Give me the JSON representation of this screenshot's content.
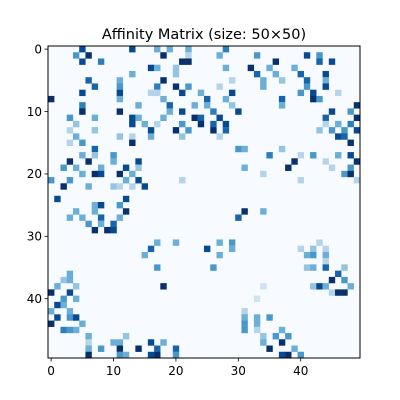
{
  "chart_data": {
    "type": "heatmap",
    "title": "Affinity Matrix (size: 50×50)",
    "size": 50,
    "colormap": "Blues",
    "background_color": "#f7fbff",
    "xlabel": "",
    "ylabel": "",
    "xlim": [
      -0.5,
      49.5
    ],
    "ylim": [
      49.5,
      -0.5
    ],
    "x_ticks": [
      0,
      10,
      20,
      30,
      40
    ],
    "y_ticks": [
      0,
      10,
      20,
      30,
      40
    ],
    "x_tick_labels": [
      "0",
      "10",
      "20",
      "30",
      "40"
    ],
    "y_tick_labels": [
      "0",
      "10",
      "20",
      "30",
      "40"
    ],
    "grid": false,
    "legend": "none",
    "value_range": [
      0,
      1
    ],
    "cells": [
      [
        0,
        5,
        0.9
      ],
      [
        0,
        13,
        0.9
      ],
      [
        0,
        17,
        0.5
      ],
      [
        0,
        19,
        0.5
      ],
      [
        0,
        22,
        0.5
      ],
      [
        0,
        28,
        0.7
      ],
      [
        1,
        4,
        0.6
      ],
      [
        1,
        6,
        1.0
      ],
      [
        1,
        18,
        1.0
      ],
      [
        1,
        22,
        0.3
      ],
      [
        1,
        27,
        0.5
      ],
      [
        1,
        33,
        0.6
      ],
      [
        1,
        41,
        0.9
      ],
      [
        1,
        43,
        0.6
      ],
      [
        2,
        5,
        0.9
      ],
      [
        2,
        8,
        0.7
      ],
      [
        2,
        21,
        1.0
      ],
      [
        2,
        22,
        1.0
      ],
      [
        2,
        36,
        1.0
      ],
      [
        2,
        43,
        0.8
      ],
      [
        2,
        45,
        0.9
      ],
      [
        3,
        16,
        0.9
      ],
      [
        3,
        17,
        0.5
      ],
      [
        3,
        20,
        0.4
      ],
      [
        3,
        28,
        0.5
      ],
      [
        3,
        32,
        1.0
      ],
      [
        3,
        35,
        0.5
      ],
      [
        3,
        39,
        0.5
      ],
      [
        4,
        13,
        0.5
      ],
      [
        4,
        20,
        0.4
      ],
      [
        4,
        33,
        0.8
      ],
      [
        4,
        36,
        0.5
      ],
      [
        4,
        40,
        0.8
      ],
      [
        4,
        44,
        0.9
      ],
      [
        5,
        6,
        0.8
      ],
      [
        5,
        11,
        0.5
      ],
      [
        5,
        18,
        1.0
      ],
      [
        5,
        29,
        0.3
      ],
      [
        5,
        34,
        0.5
      ],
      [
        5,
        37,
        0.4
      ],
      [
        5,
        41,
        0.8
      ],
      [
        5,
        44,
        0.5
      ],
      [
        6,
        7,
        0.8
      ],
      [
        6,
        11,
        0.6
      ],
      [
        6,
        17,
        0.7
      ],
      [
        6,
        20,
        1.0
      ],
      [
        6,
        22,
        0.6
      ],
      [
        6,
        27,
        0.3
      ],
      [
        6,
        34,
        0.5
      ],
      [
        6,
        41,
        0.6
      ],
      [
        6,
        44,
        0.9
      ],
      [
        7,
        5,
        0.9
      ],
      [
        7,
        11,
        0.9
      ],
      [
        7,
        16,
        0.3
      ],
      [
        7,
        17,
        0.3
      ],
      [
        7,
        21,
        0.9
      ],
      [
        7,
        24,
        0.5
      ],
      [
        7,
        29,
        0.9
      ],
      [
        7,
        40,
        0.6
      ],
      [
        7,
        42,
        0.9
      ],
      [
        7,
        46,
        0.3
      ],
      [
        8,
        0,
        1.0
      ],
      [
        8,
        11,
        0.5
      ],
      [
        8,
        18,
        0.5
      ],
      [
        8,
        25,
        0.8
      ],
      [
        8,
        28,
        0.5
      ],
      [
        8,
        37,
        0.8
      ],
      [
        8,
        42,
        1.0
      ],
      [
        8,
        43,
        0.6
      ],
      [
        9,
        5,
        0.7
      ],
      [
        9,
        14,
        0.5
      ],
      [
        9,
        19,
        0.8
      ],
      [
        9,
        23,
        0.5
      ],
      [
        9,
        25,
        0.5
      ],
      [
        9,
        29,
        0.4
      ],
      [
        9,
        37,
        0.5
      ],
      [
        9,
        49,
        1.0
      ],
      [
        10,
        5,
        1.0
      ],
      [
        10,
        11,
        1.0
      ],
      [
        10,
        19,
        0.5
      ],
      [
        10,
        21,
        0.9
      ],
      [
        10,
        26,
        0.7
      ],
      [
        10,
        30,
        0.9
      ],
      [
        10,
        45,
        0.9
      ],
      [
        10,
        48,
        0.6
      ],
      [
        11,
        3,
        0.6
      ],
      [
        11,
        7,
        0.5
      ],
      [
        11,
        13,
        0.9
      ],
      [
        11,
        14,
        0.5
      ],
      [
        11,
        18,
        0.5
      ],
      [
        11,
        23,
        1.0
      ],
      [
        11,
        24,
        0.8
      ],
      [
        11,
        27,
        0.9
      ],
      [
        11,
        44,
        0.8
      ],
      [
        11,
        49,
        1.0
      ],
      [
        12,
        4,
        0.4
      ],
      [
        12,
        13,
        0.9
      ],
      [
        12,
        15,
        0.5
      ],
      [
        12,
        17,
        0.3
      ],
      [
        12,
        21,
        0.6
      ],
      [
        12,
        24,
        1.0
      ],
      [
        12,
        26,
        0.8
      ],
      [
        12,
        28,
        0.9
      ],
      [
        12,
        44,
        0.3
      ],
      [
        12,
        46,
        0.5
      ],
      [
        12,
        48,
        0.7
      ],
      [
        13,
        3,
        0.3
      ],
      [
        13,
        7,
        0.4
      ],
      [
        13,
        16,
        0.9
      ],
      [
        13,
        20,
        1.0
      ],
      [
        13,
        22,
        0.6
      ],
      [
        13,
        26,
        1.0
      ],
      [
        13,
        28,
        0.8
      ],
      [
        13,
        43,
        0.4
      ],
      [
        13,
        45,
        0.6
      ],
      [
        13,
        47,
        0.6
      ],
      [
        13,
        49,
        0.9
      ],
      [
        14,
        4,
        0.5
      ],
      [
        14,
        11,
        0.4
      ],
      [
        14,
        13,
        0.3
      ],
      [
        14,
        16,
        0.5
      ],
      [
        14,
        21,
        0.4
      ],
      [
        14,
        27,
        0.3
      ],
      [
        14,
        46,
        0.9
      ],
      [
        14,
        47,
        0.8
      ],
      [
        15,
        3,
        0.3
      ],
      [
        15,
        5,
        0.6
      ],
      [
        15,
        13,
        1.0
      ],
      [
        15,
        48,
        1.0
      ],
      [
        16,
        7,
        0.8
      ],
      [
        16,
        30,
        0.6
      ],
      [
        16,
        31,
        0.5
      ],
      [
        16,
        37,
        0.4
      ],
      [
        17,
        5,
        0.5
      ],
      [
        17,
        7,
        0.4
      ],
      [
        17,
        10,
        0.6
      ],
      [
        17,
        35,
        0.7
      ],
      [
        17,
        40,
        0.3
      ],
      [
        17,
        42,
        0.6
      ],
      [
        17,
        46,
        0.5
      ],
      [
        17,
        48,
        0.9
      ],
      [
        18,
        3,
        1.0
      ],
      [
        18,
        6,
        1.0
      ],
      [
        18,
        10,
        0.5
      ],
      [
        18,
        14,
        0.9
      ],
      [
        18,
        39,
        1.0
      ],
      [
        18,
        44,
        0.3
      ],
      [
        18,
        49,
        1.0
      ],
      [
        19,
        2,
        0.6
      ],
      [
        19,
        4,
        0.5
      ],
      [
        19,
        8,
        0.5
      ],
      [
        19,
        12,
        0.9
      ],
      [
        19,
        14,
        0.4
      ],
      [
        19,
        31,
        0.5
      ],
      [
        19,
        38,
        1.0
      ],
      [
        19,
        45,
        0.3
      ],
      [
        19,
        48,
        0.6
      ],
      [
        20,
        5,
        0.5
      ],
      [
        20,
        7,
        1.0
      ],
      [
        20,
        8,
        0.9
      ],
      [
        20,
        11,
        1.0
      ],
      [
        20,
        13,
        0.5
      ],
      [
        20,
        34,
        0.3
      ],
      [
        20,
        47,
        0.6
      ],
      [
        20,
        48,
        1.0
      ],
      [
        21,
        0,
        0.6
      ],
      [
        21,
        3,
        0.6
      ],
      [
        21,
        12,
        0.5
      ],
      [
        21,
        14,
        0.9
      ],
      [
        21,
        21,
        0.3
      ],
      [
        21,
        40,
        0.3
      ],
      [
        21,
        49,
        0.3
      ],
      [
        22,
        2,
        1.0
      ],
      [
        22,
        6,
        0.5
      ],
      [
        22,
        10,
        0.4
      ],
      [
        22,
        11,
        0.3
      ],
      [
        22,
        13,
        0.3
      ],
      [
        22,
        15,
        0.9
      ],
      [
        24,
        1,
        0.9
      ],
      [
        24,
        12,
        0.9
      ],
      [
        25,
        7,
        0.5
      ],
      [
        25,
        8,
        0.9
      ],
      [
        25,
        11,
        0.6
      ],
      [
        26,
        4,
        0.5
      ],
      [
        26,
        7,
        0.5
      ],
      [
        26,
        12,
        1.0
      ],
      [
        26,
        31,
        1.0
      ],
      [
        26,
        34,
        0.5
      ],
      [
        27,
        3,
        0.5
      ],
      [
        27,
        5,
        0.5
      ],
      [
        27,
        8,
        0.8
      ],
      [
        27,
        11,
        0.5
      ],
      [
        27,
        30,
        0.8
      ],
      [
        28,
        6,
        0.6
      ],
      [
        28,
        8,
        0.5
      ],
      [
        28,
        10,
        0.8
      ],
      [
        29,
        7,
        1.0
      ],
      [
        29,
        9,
        1.0
      ],
      [
        29,
        10,
        0.9
      ],
      [
        31,
        17,
        0.5
      ],
      [
        31,
        20,
        0.5
      ],
      [
        31,
        27,
        0.5
      ],
      [
        31,
        29,
        0.6
      ],
      [
        31,
        43,
        0.3
      ],
      [
        32,
        16,
        0.8
      ],
      [
        32,
        25,
        0.9
      ],
      [
        32,
        29,
        0.5
      ],
      [
        32,
        40,
        0.3
      ],
      [
        32,
        42,
        0.4
      ],
      [
        32,
        44,
        0.3
      ],
      [
        33,
        15,
        0.5
      ],
      [
        33,
        27,
        0.5
      ],
      [
        33,
        41,
        0.5
      ],
      [
        33,
        42,
        0.6
      ],
      [
        33,
        44,
        0.5
      ],
      [
        34,
        44,
        0.3
      ],
      [
        35,
        17,
        0.6
      ],
      [
        35,
        26,
        0.6
      ],
      [
        35,
        41,
        0.4
      ],
      [
        35,
        42,
        0.5
      ],
      [
        35,
        44,
        0.8
      ],
      [
        35,
        47,
        0.4
      ],
      [
        36,
        3,
        0.5
      ],
      [
        36,
        46,
        0.8
      ],
      [
        37,
        2,
        0.4
      ],
      [
        37,
        3,
        0.5
      ],
      [
        37,
        45,
        1.0
      ],
      [
        37,
        47,
        0.6
      ],
      [
        38,
        1,
        0.5
      ],
      [
        38,
        4,
        0.4
      ],
      [
        38,
        18,
        1.0
      ],
      [
        38,
        34,
        0.2
      ],
      [
        38,
        42,
        0.4
      ],
      [
        38,
        43,
        0.9
      ],
      [
        38,
        44,
        0.5
      ],
      [
        38,
        48,
        0.5
      ],
      [
        39,
        0,
        1.0
      ],
      [
        39,
        3,
        0.9
      ],
      [
        39,
        45,
        0.3
      ],
      [
        39,
        46,
        1.0
      ],
      [
        39,
        47,
        1.0
      ],
      [
        40,
        2,
        0.6
      ],
      [
        40,
        4,
        0.5
      ],
      [
        40,
        33,
        0.2
      ],
      [
        41,
        1,
        0.9
      ],
      [
        41,
        2,
        0.5
      ],
      [
        42,
        0,
        0.5
      ],
      [
        42,
        3,
        0.5
      ],
      [
        42,
        31,
        0.3
      ],
      [
        43,
        1,
        0.9
      ],
      [
        43,
        3,
        0.6
      ],
      [
        43,
        4,
        0.9
      ],
      [
        43,
        31,
        0.5
      ],
      [
        43,
        33,
        0.5
      ],
      [
        43,
        35,
        0.6
      ],
      [
        44,
        0,
        1.0
      ],
      [
        44,
        5,
        0.5
      ],
      [
        44,
        31,
        0.6
      ],
      [
        44,
        33,
        0.5
      ],
      [
        45,
        2,
        0.7
      ],
      [
        45,
        3,
        0.6
      ],
      [
        45,
        4,
        0.5
      ],
      [
        45,
        31,
        0.6
      ],
      [
        45,
        33,
        0.3
      ],
      [
        45,
        37,
        0.5
      ],
      [
        46,
        6,
        0.5
      ],
      [
        46,
        12,
        0.4
      ],
      [
        46,
        34,
        0.4
      ],
      [
        46,
        36,
        0.6
      ],
      [
        46,
        38,
        0.6
      ],
      [
        47,
        6,
        0.3
      ],
      [
        47,
        10,
        0.5
      ],
      [
        47,
        11,
        0.5
      ],
      [
        47,
        16,
        0.9
      ],
      [
        47,
        18,
        0.5
      ],
      [
        47,
        34,
        0.5
      ],
      [
        47,
        37,
        1.0
      ],
      [
        48,
        6,
        0.5
      ],
      [
        48,
        8,
        0.6
      ],
      [
        48,
        11,
        1.0
      ],
      [
        48,
        14,
        1.0
      ],
      [
        48,
        17,
        0.8
      ],
      [
        48,
        20,
        0.8
      ],
      [
        48,
        35,
        1.0
      ],
      [
        48,
        39,
        0.5
      ],
      [
        49,
        6,
        1.0
      ],
      [
        49,
        11,
        0.6
      ],
      [
        49,
        12,
        0.5
      ],
      [
        49,
        16,
        0.9
      ],
      [
        49,
        17,
        1.0
      ],
      [
        49,
        20,
        0.6
      ],
      [
        49,
        37,
        0.9
      ],
      [
        49,
        38,
        1.0
      ],
      [
        49,
        40,
        0.6
      ]
    ]
  }
}
